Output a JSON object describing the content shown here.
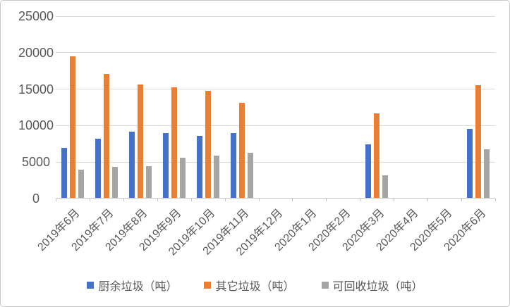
{
  "chart_data": {
    "type": "bar",
    "title": "",
    "xlabel": "",
    "ylabel": "",
    "categories": [
      "2019年6月",
      "2019年7月",
      "2019年8月",
      "2019年9月",
      "2019年10月",
      "2019年11月",
      "2019年12月",
      "2020年1月",
      "2020年2月",
      "2020年3月",
      "2020年4月",
      "2020年5月",
      "2020年6月"
    ],
    "series": [
      {
        "id": "kitchen-waste",
        "name": "厨余垃圾（吨）",
        "color": "#4472C4",
        "values": [
          6900,
          8100,
          9100,
          8900,
          8500,
          8900,
          0,
          0,
          0,
          7300,
          0,
          0,
          9500
        ]
      },
      {
        "id": "other-waste",
        "name": "其它垃圾（吨）",
        "color": "#ED7D31",
        "values": [
          19400,
          17000,
          15500,
          15200,
          14700,
          13000,
          0,
          0,
          0,
          11600,
          0,
          0,
          15400
        ]
      },
      {
        "id": "recyclable-waste",
        "name": "可回收垃圾（吨）",
        "color": "#A5A5A5",
        "values": [
          3900,
          4200,
          4300,
          5500,
          5800,
          6200,
          0,
          0,
          0,
          3100,
          0,
          0,
          6700
        ]
      }
    ],
    "ylim": [
      0,
      25000
    ],
    "yticks": [
      0,
      5000,
      10000,
      15000,
      20000,
      25000
    ],
    "grid": true,
    "legend_position": "bottom"
  },
  "style": {
    "gridline_color": "#d9d9d9",
    "axis_color": "#c9c9c9",
    "text_color": "#595959",
    "background": "#ffffff",
    "border_color": "#c8c8c8"
  }
}
